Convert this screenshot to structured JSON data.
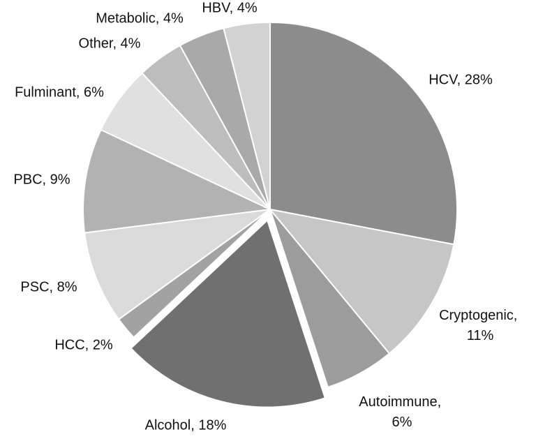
{
  "chart_data": {
    "type": "pie",
    "values": [
      28,
      11,
      6,
      18,
      2,
      8,
      9,
      6,
      4,
      4,
      4
    ],
    "value_labels": [
      "HCV, 28%",
      "Cryptogenic, 11%",
      "Autoimmune, 6%",
      "Alcohol, 18%",
      "HCC, 2%",
      "PSC, 8%",
      "PBC, 9%",
      "Fulminant, 6%",
      "Other, 4%",
      "Metabolic, 4%",
      "HBV, 4%"
    ],
    "colors": [
      "#8c8c8c",
      "#c6c6c6",
      "#9c9c9c",
      "#707070",
      "#a2a2a2",
      "#dadada",
      "#b2b2b2",
      "#e0e0e0",
      "#bdbdbd",
      "#a9a9a9",
      "#d2d2d2"
    ]
  }
}
